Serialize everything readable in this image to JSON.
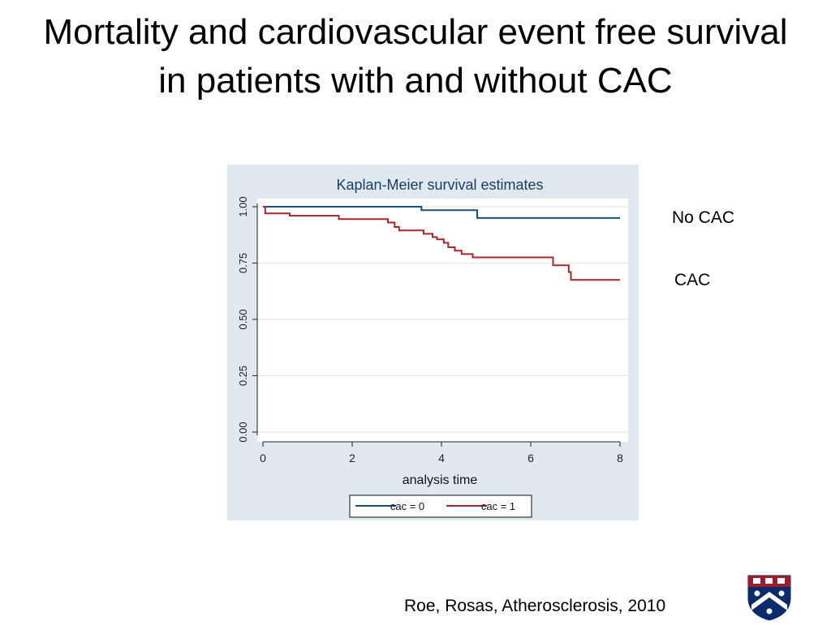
{
  "slide": {
    "title": "Mortality and cardiovascular event free survival in patients with and without CAC",
    "annotations": {
      "no_cac": "No CAC",
      "cac": "CAC"
    },
    "citation": "Roe, Rosas, Atherosclerosis, 2010"
  },
  "colors": {
    "panel_bg": "#dfe9ef",
    "plot_bg": "#ffffff",
    "cac0": "#1a4f77",
    "cac1": "#a3262a",
    "grid": "#e2e8ec",
    "logo_shield": "#0b2a6b",
    "logo_chief": "#9b1c2e"
  },
  "chart_data": {
    "type": "line",
    "subtype": "step",
    "title": "Kaplan-Meier survival estimates",
    "xlabel": "analysis time",
    "ylabel": "",
    "xlim": [
      0,
      8
    ],
    "ylim": [
      0,
      1
    ],
    "xticks": [
      "0",
      "2",
      "4",
      "6",
      "8"
    ],
    "yticks": [
      "0.00",
      "0.25",
      "0.50",
      "0.75",
      "1.00"
    ],
    "grid": true,
    "legend_position": "bottom",
    "series": [
      {
        "name": "cac = 0",
        "x": [
          0,
          3.55,
          3.55,
          4.8,
          4.8,
          8
        ],
        "y": [
          1.0,
          1.0,
          0.985,
          0.985,
          0.95,
          0.95
        ]
      },
      {
        "name": "cac = 1",
        "x": [
          0,
          0.05,
          0.05,
          0.6,
          0.6,
          1.7,
          1.7,
          2.8,
          2.8,
          2.95,
          2.95,
          3.05,
          3.05,
          3.6,
          3.6,
          3.8,
          3.8,
          3.9,
          3.9,
          4.05,
          4.05,
          4.15,
          4.15,
          4.3,
          4.3,
          4.45,
          4.45,
          4.7,
          4.7,
          6.5,
          6.5,
          6.85,
          6.85,
          6.9,
          6.9,
          8
        ],
        "y": [
          1.0,
          1.0,
          0.97,
          0.97,
          0.96,
          0.96,
          0.945,
          0.945,
          0.93,
          0.93,
          0.91,
          0.91,
          0.895,
          0.895,
          0.88,
          0.88,
          0.865,
          0.865,
          0.855,
          0.855,
          0.84,
          0.84,
          0.82,
          0.82,
          0.805,
          0.805,
          0.79,
          0.79,
          0.775,
          0.775,
          0.74,
          0.74,
          0.71,
          0.71,
          0.675,
          0.675
        ]
      }
    ]
  }
}
